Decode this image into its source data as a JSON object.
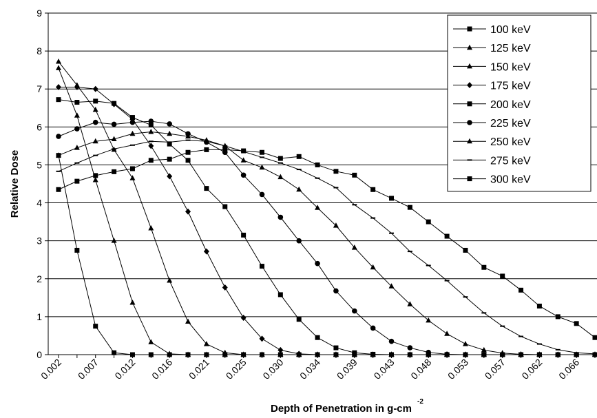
{
  "chart_data": {
    "type": "line",
    "ylabel": "Relative Dose",
    "xlabel": "Depth of Penetration in g-cm",
    "xlabel_superscript": "-2",
    "categories": [
      "0.002",
      null,
      "0.007",
      null,
      "0.012",
      null,
      "0.016",
      null,
      "0.021",
      null,
      "0.025",
      null,
      "0.030",
      null,
      "0.034",
      null,
      "0.039",
      null,
      "0.043",
      null,
      "0.048",
      null,
      "0.053",
      null,
      "0.057",
      null,
      "0.062",
      null,
      "0.066",
      null
    ],
    "ylim": [
      0,
      9
    ],
    "yticks": [
      0,
      1,
      2,
      3,
      4,
      5,
      6,
      7,
      8,
      9
    ],
    "grid": true,
    "legend": "upper right",
    "series": [
      {
        "name": "100 keV",
        "color": "#000000",
        "marker": "square",
        "values": [
          5.25,
          2.75,
          0.75,
          0.05,
          0,
          0,
          0,
          0,
          0,
          0,
          0,
          0,
          0,
          0,
          0,
          0,
          0,
          0,
          0,
          0,
          0,
          0,
          0,
          0,
          0,
          0,
          0,
          0,
          0,
          0
        ]
      },
      {
        "name": "125 keV",
        "color": "#000000",
        "marker": "triangle",
        "values": [
          7.55,
          6.3,
          4.6,
          3.0,
          1.37,
          0.33,
          0.02,
          0,
          0,
          0,
          0,
          0,
          0,
          0,
          0,
          0,
          0,
          0,
          0,
          0,
          0,
          0,
          0,
          0,
          0,
          0,
          0,
          0,
          0,
          0
        ]
      },
      {
        "name": "150 keV",
        "color": "#000000",
        "marker": "triangle",
        "values": [
          7.72,
          7.1,
          6.45,
          5.4,
          4.65,
          3.33,
          1.95,
          0.87,
          0.28,
          0.05,
          0,
          0,
          0,
          0,
          0,
          0,
          0,
          0,
          0,
          0,
          0,
          0,
          0,
          0,
          0,
          0,
          0,
          0,
          0,
          0
        ]
      },
      {
        "name": "175 keV",
        "color": "#000000",
        "marker": "diamond",
        "values": [
          7.05,
          7.05,
          7.0,
          6.6,
          6.2,
          5.5,
          4.7,
          3.77,
          2.72,
          1.77,
          0.97,
          0.42,
          0.12,
          0.02,
          0,
          0,
          0,
          0,
          0,
          0,
          0,
          0,
          0,
          0,
          0,
          0,
          0,
          0,
          0,
          0
        ]
      },
      {
        "name": "200 keV",
        "color": "#000000",
        "marker": "square",
        "values": [
          6.72,
          6.65,
          6.68,
          6.62,
          6.25,
          6.05,
          5.55,
          5.12,
          4.38,
          3.9,
          3.15,
          2.33,
          1.58,
          0.93,
          0.45,
          0.18,
          0.05,
          0.01,
          0,
          0,
          0,
          0,
          0,
          0,
          0,
          0,
          0,
          0,
          0,
          0
        ]
      },
      {
        "name": "225 keV",
        "color": "#000000",
        "marker": "circle",
        "values": [
          5.75,
          5.95,
          6.12,
          6.07,
          6.12,
          6.15,
          6.08,
          5.82,
          5.6,
          5.33,
          4.73,
          4.22,
          3.62,
          3.0,
          2.4,
          1.68,
          1.15,
          0.7,
          0.35,
          0.18,
          0.06,
          0.01,
          0,
          0,
          0,
          0,
          0,
          0,
          0,
          0
        ]
      },
      {
        "name": "250 keV",
        "color": "#000000",
        "marker": "triangle",
        "values": [
          5.25,
          5.45,
          5.62,
          5.68,
          5.82,
          5.87,
          5.82,
          5.75,
          5.65,
          5.5,
          5.12,
          4.93,
          4.68,
          4.35,
          3.87,
          3.4,
          2.82,
          2.3,
          1.8,
          1.33,
          0.9,
          0.55,
          0.28,
          0.12,
          0.04,
          0.01,
          0,
          0,
          0,
          0
        ]
      },
      {
        "name": "275 keV",
        "color": "#000000",
        "marker": "dash",
        "values": [
          4.83,
          5.05,
          5.25,
          5.42,
          5.52,
          5.62,
          5.6,
          5.65,
          5.62,
          5.5,
          5.35,
          5.2,
          5.05,
          4.88,
          4.65,
          4.4,
          3.95,
          3.6,
          3.2,
          2.72,
          2.35,
          1.95,
          1.52,
          1.1,
          0.75,
          0.48,
          0.28,
          0.13,
          0.05,
          0.02
        ]
      },
      {
        "name": "300 keV",
        "color": "#000000",
        "marker": "square",
        "values": [
          4.35,
          4.57,
          4.72,
          4.82,
          4.9,
          5.12,
          5.15,
          5.33,
          5.4,
          5.4,
          5.37,
          5.33,
          5.17,
          5.22,
          5.0,
          4.83,
          4.73,
          4.35,
          4.12,
          3.88,
          3.5,
          3.12,
          2.75,
          2.3,
          2.07,
          1.7,
          1.28,
          1.0,
          0.82,
          0.45
        ]
      }
    ]
  }
}
